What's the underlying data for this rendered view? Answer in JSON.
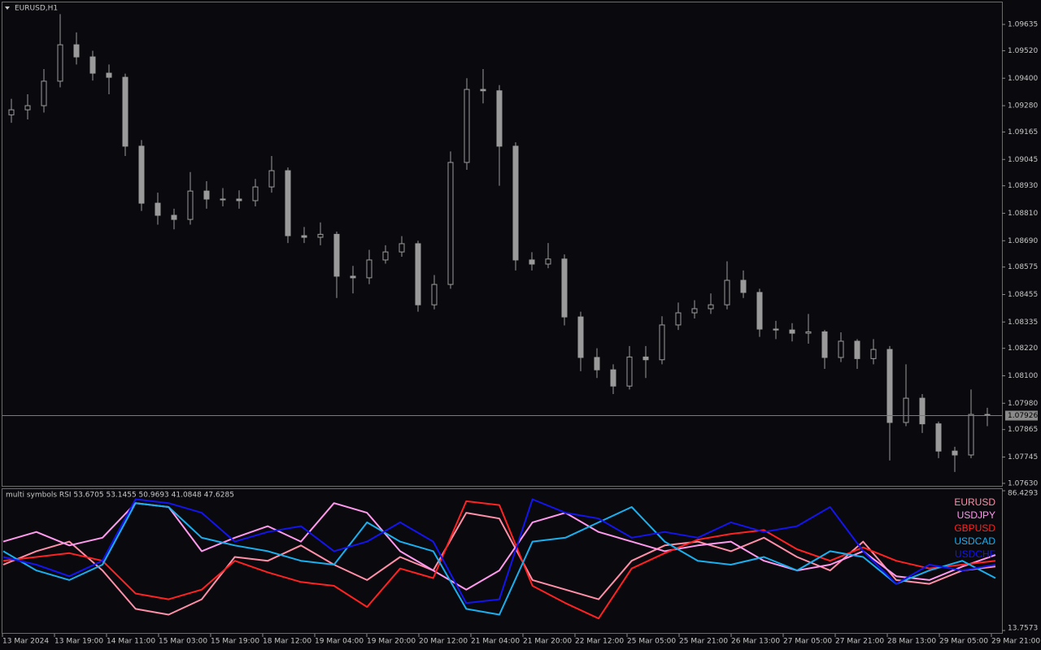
{
  "chart_data": [
    {
      "type": "candlestick",
      "title": "EURUSD,H1",
      "color": "#9a9a9a",
      "open": [
        1.0924,
        1.09262,
        1.0928,
        1.09387,
        1.09546,
        1.09493,
        1.09422,
        1.09404,
        1.09103,
        1.08854,
        1.08801,
        1.08783,
        1.08907,
        1.08872,
        1.08872,
        1.08865,
        1.08925,
        1.08996,
        1.08712,
        1.08705,
        1.08718,
        1.08535,
        1.08528,
        1.08606,
        1.08641,
        1.08677,
        1.0841,
        1.08499,
        1.09032,
        1.09351,
        1.09345,
        1.09103,
        1.08606,
        1.08588,
        1.0861,
        1.08357,
        1.0818,
        1.08126,
        1.08055,
        1.08182,
        1.0817,
        1.08322,
        1.08375,
        1.08393,
        1.0841,
        1.08517,
        1.08464,
        1.08304,
        1.083,
        1.08286,
        1.08292,
        1.0818,
        1.08251,
        1.08175,
        1.08215,
        1.07896,
        1.08002,
        1.0789,
        1.07771,
        1.07754,
        1.07931
      ],
      "high": [
        1.0931,
        1.0933,
        1.0944,
        1.0968,
        1.096,
        1.0952,
        1.0946,
        1.0942,
        1.0913,
        1.089,
        1.0883,
        1.0899,
        1.0895,
        1.0892,
        1.0891,
        1.0896,
        1.0906,
        1.0901,
        1.0875,
        1.0877,
        1.0873,
        1.0858,
        1.0865,
        1.0867,
        1.0871,
        1.0869,
        1.0854,
        1.0908,
        1.094,
        1.0944,
        1.0937,
        1.0912,
        1.0864,
        1.0868,
        1.0863,
        1.0838,
        1.0822,
        1.0815,
        1.0823,
        1.0823,
        1.0836,
        1.0842,
        1.0843,
        1.0846,
        1.086,
        1.0856,
        1.0848,
        1.0834,
        1.0833,
        1.0837,
        1.083,
        1.0829,
        1.0826,
        1.0826,
        1.0823,
        1.0815,
        1.0802,
        1.079,
        1.0779,
        1.0804,
        1.0796
      ],
      "low": [
        1.09205,
        1.0922,
        1.0925,
        1.0936,
        1.0946,
        1.0939,
        1.0933,
        1.0906,
        1.0882,
        1.0876,
        1.0874,
        1.0876,
        1.0883,
        1.0884,
        1.0883,
        1.0884,
        1.089,
        1.0868,
        1.0868,
        1.0867,
        1.0844,
        1.0846,
        1.085,
        1.0859,
        1.0862,
        1.0838,
        1.0839,
        1.0848,
        1.09,
        1.0929,
        1.0893,
        1.0856,
        1.0856,
        1.0857,
        1.0832,
        1.0812,
        1.0809,
        1.0802,
        1.0804,
        1.0809,
        1.0815,
        1.083,
        1.0835,
        1.0837,
        1.0839,
        1.0844,
        1.0827,
        1.0826,
        1.0825,
        1.0824,
        1.0813,
        1.0816,
        1.0813,
        1.0815,
        1.0773,
        1.0788,
        1.0785,
        1.0774,
        1.0768,
        1.0774,
        1.0788
      ],
      "close": [
        1.09262,
        1.0928,
        1.09387,
        1.09546,
        1.09493,
        1.09422,
        1.09404,
        1.09103,
        1.08854,
        1.08801,
        1.08783,
        1.08907,
        1.08872,
        1.08872,
        1.08865,
        1.08925,
        1.08996,
        1.08712,
        1.08705,
        1.08718,
        1.08535,
        1.08528,
        1.08606,
        1.08641,
        1.08677,
        1.0841,
        1.08499,
        1.09032,
        1.09351,
        1.09345,
        1.09103,
        1.08606,
        1.08588,
        1.0861,
        1.08357,
        1.0818,
        1.08126,
        1.08055,
        1.08182,
        1.0817,
        1.08322,
        1.08375,
        1.08393,
        1.0841,
        1.08517,
        1.08464,
        1.08304,
        1.083,
        1.08286,
        1.08292,
        1.0818,
        1.08251,
        1.08175,
        1.08215,
        1.07896,
        1.08002,
        1.0789,
        1.07771,
        1.07754,
        1.07931,
        1.07926
      ],
      "ylim": [
        1.07619,
        1.09731
      ],
      "yticks": [
        1.09635,
        {
          "value": 1.0952,
          "label": "1.09520"
        },
        {
          "value": 1.094,
          "label": "1.09400"
        },
        {
          "value": 1.0928,
          "label": "1.09280"
        },
        1.09165,
        1.09045,
        {
          "value": 1.0893,
          "label": "1.08930"
        },
        {
          "value": 1.0881,
          "label": "1.08810"
        },
        {
          "value": 1.0869,
          "label": "1.08690"
        },
        1.08575,
        1.08455,
        1.08335,
        {
          "value": 1.0822,
          "label": "1.08220"
        },
        {
          "value": 1.081,
          "label": "1.08100"
        },
        {
          "value": 1.0798,
          "label": "1.07980"
        },
        1.07865,
        1.07745,
        {
          "value": 1.0763,
          "label": "1.07630"
        }
      ],
      "last_price": 1.07926
    },
    {
      "type": "line",
      "title": "multi symbols RSI 53.6705 53.1455 50.9693 41.0848 47.6285",
      "ylim": [
        13.7573,
        86.4293
      ],
      "yticks": [
        86.4293,
        13.7573
      ],
      "legend": "upper right",
      "series": [
        {
          "name": "EURUSD",
          "color": "#ff8fa8",
          "values": [
            48,
            55,
            60,
            45,
            25,
            22,
            30,
            52,
            50,
            58,
            48,
            40,
            52,
            45,
            75,
            72,
            40,
            35,
            30,
            50,
            58,
            60,
            55,
            62,
            52,
            45,
            60,
            40,
            38,
            45,
            47
          ]
        },
        {
          "name": "USDJPY",
          "color": "#ff99ee",
          "values": [
            60,
            65,
            58,
            62,
            80,
            78,
            55,
            62,
            68,
            60,
            80,
            75,
            55,
            45,
            35,
            45,
            70,
            75,
            65,
            60,
            55,
            58,
            60,
            50,
            45,
            48,
            55,
            42,
            40,
            47,
            53
          ]
        },
        {
          "name": "GBPUSD",
          "color": "#ff2222",
          "values": [
            50,
            52,
            54,
            50,
            33,
            30,
            35,
            50,
            44,
            39,
            37,
            26,
            46,
            41,
            81,
            79,
            37,
            28,
            20,
            46,
            54,
            61,
            64,
            66,
            56,
            50,
            57,
            50,
            46,
            48,
            50
          ]
        },
        {
          "name": "USDCAD",
          "color": "#1ab0f0",
          "values": [
            55,
            45,
            40,
            48,
            80,
            78,
            62,
            58,
            55,
            50,
            48,
            70,
            60,
            55,
            25,
            22,
            60,
            62,
            70,
            78,
            60,
            50,
            48,
            52,
            45,
            55,
            52,
            38,
            45,
            50,
            41
          ]
        },
        {
          "name": "USDCHF",
          "color": "#1414f0",
          "values": [
            52,
            48,
            42,
            50,
            82,
            80,
            75,
            60,
            65,
            68,
            55,
            60,
            70,
            60,
            28,
            30,
            82,
            75,
            72,
            62,
            65,
            62,
            70,
            65,
            68,
            78,
            55,
            38,
            48,
            45,
            48
          ]
        }
      ],
      "x_labels": [
        "13 Mar 2024",
        "13 Mar 19:00",
        "14 Mar 11:00",
        "15 Mar 03:00",
        "15 Mar 19:00",
        "18 Mar 12:00",
        "19 Mar 04:00",
        "19 Mar 20:00",
        "20 Mar 12:00",
        "21 Mar 04:00",
        "21 Mar 20:00",
        "22 Mar 12:00",
        "25 Mar 05:00",
        "25 Mar 21:00",
        "26 Mar 13:00",
        "27 Mar 05:00",
        "27 Mar 21:00",
        "28 Mar 13:00",
        "29 Mar 05:00",
        "29 Mar 21:00"
      ]
    }
  ]
}
